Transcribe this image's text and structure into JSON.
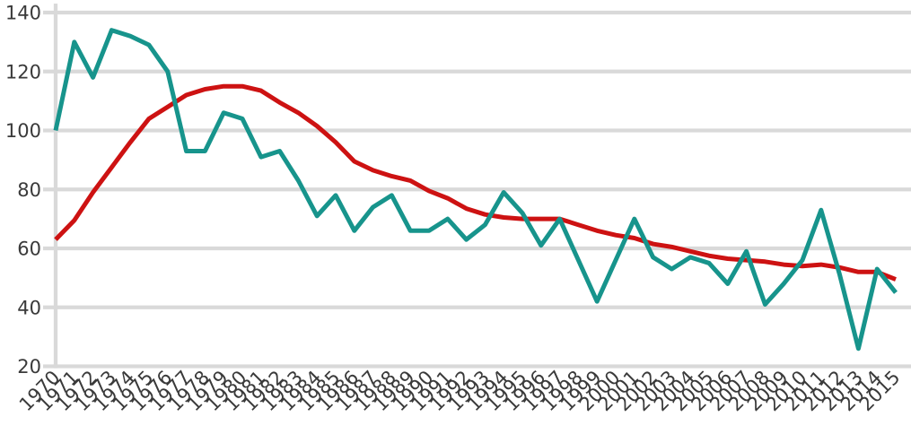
{
  "chart_data": {
    "type": "line",
    "title": "",
    "xlabel": "",
    "ylabel": "",
    "grid": true,
    "legend": "none",
    "ylim": [
      20,
      140
    ],
    "y_ticks": [
      20,
      40,
      60,
      80,
      100,
      120,
      140
    ],
    "x": [
      "1970",
      "1971",
      "1972",
      "1973",
      "1974",
      "1975",
      "1976",
      "1977",
      "1978",
      "1979",
      "1980",
      "1981",
      "1982",
      "1983",
      "1984",
      "1985",
      "1986",
      "1987",
      "1988",
      "1989",
      "1990",
      "1991",
      "1992",
      "1993",
      "1994",
      "1995",
      "1996",
      "1997",
      "1998",
      "1999",
      "2000",
      "2001",
      "2002",
      "2003",
      "2004",
      "2005",
      "2006",
      "2007",
      "2008",
      "2009",
      "2010",
      "2011",
      "2012",
      "2013",
      "2014",
      "2015"
    ],
    "series": [
      {
        "name": "red-trend-line",
        "color": "#cd1212",
        "values": [
          63,
          69.5,
          79,
          87.5,
          96,
          104,
          108,
          112,
          114,
          115,
          115,
          113.5,
          109.5,
          106,
          101.5,
          96,
          89.5,
          86.5,
          84.5,
          83,
          79.5,
          77,
          73.5,
          71.5,
          70.5,
          70,
          70,
          70,
          68,
          66,
          64.5,
          63.5,
          61.5,
          60.5,
          59,
          57.5,
          56.5,
          56,
          55.5,
          54.5,
          54,
          54.5,
          53.5,
          52,
          52,
          49.5
        ]
      },
      {
        "name": "teal-annual-line",
        "color": "#17948c",
        "values": [
          100,
          130,
          118,
          134,
          132,
          129,
          120,
          93,
          93,
          106,
          104,
          91,
          93,
          83,
          71,
          78,
          66,
          74,
          78,
          66,
          66,
          70,
          63,
          68,
          79,
          72,
          61,
          70,
          56,
          42,
          56,
          70,
          57,
          53,
          57,
          55,
          48,
          59,
          41,
          48,
          56,
          73,
          51,
          26,
          53,
          45
        ]
      }
    ],
    "styling": {
      "background": "#ffffff",
      "grid_color": "#d9d9d9",
      "axis_color": "#d9d9d9",
      "tick_label_color": "#3a3a3a"
    }
  }
}
